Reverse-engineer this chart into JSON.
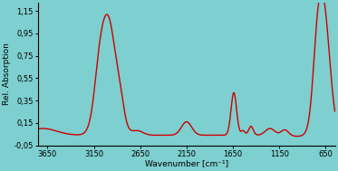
{
  "xlabel": "Wavenumber [cm⁻¹]",
  "ylabel": "Rel. Absorption",
  "xlim": [
    3750,
    550
  ],
  "ylim": [
    -0.05,
    1.22
  ],
  "yticks": [
    -0.05,
    0.15,
    0.35,
    0.55,
    0.75,
    0.95,
    1.15
  ],
  "ytick_labels": [
    "-0,05",
    "0,15",
    "0,35",
    "0,55",
    "0,75",
    "0,95",
    "1,15"
  ],
  "xticks": [
    3650,
    3150,
    2650,
    2150,
    1650,
    1150,
    650
  ],
  "background_color": "#7ecfcf",
  "line_color": "#cc0000",
  "axes_bg": "none"
}
